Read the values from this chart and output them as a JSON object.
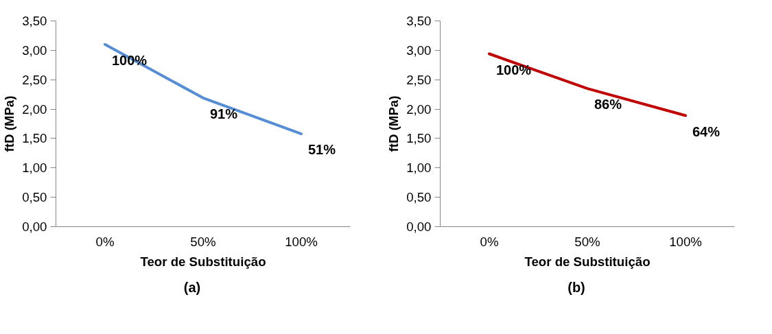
{
  "chart_data": [
    {
      "type": "line",
      "xlabel": "Teor de Substituição",
      "ylabel": "ftD (MPa)",
      "categories": [
        "0%",
        "50%",
        "100%"
      ],
      "series": [
        {
          "color": "#558ed5",
          "values": [
            3.1,
            2.19,
            1.58
          ]
        }
      ],
      "ylim": [
        0,
        3.5
      ],
      "yticks": [
        {
          "value": 0,
          "label": "0,00"
        },
        {
          "value": 0.5,
          "label": "0,50"
        },
        {
          "value": 1,
          "label": "1,00"
        },
        {
          "value": 1.5,
          "label": "1,50"
        },
        {
          "value": 2,
          "label": "2,00"
        },
        {
          "value": 2.5,
          "label": "2,50"
        },
        {
          "value": 3,
          "label": "3,00"
        },
        {
          "value": 3.5,
          "label": "3,50"
        }
      ],
      "grid": false,
      "marker": "none",
      "line_style": "solid",
      "annotations": [
        {
          "text": "100%",
          "x": "0%",
          "y": 3.1
        },
        {
          "text": "91%",
          "x": "50%",
          "y": 2.19
        },
        {
          "text": "51%",
          "x": "100%",
          "y": 1.58
        },
        "(a)"
      ]
    },
    {
      "type": "line",
      "xlabel": "Teor de Substituição",
      "ylabel": "ftD (MPa)",
      "categories": [
        "0%",
        "50%",
        "100%"
      ],
      "series": [
        {
          "color": "#c00000",
          "values": [
            2.94,
            2.35,
            1.89
          ]
        }
      ],
      "ylim": [
        0,
        3.5
      ],
      "yticks": [
        {
          "value": 0,
          "label": "0,00"
        },
        {
          "value": 0.5,
          "label": "0,50"
        },
        {
          "value": 1,
          "label": "1,00"
        },
        {
          "value": 1.5,
          "label": "1,50"
        },
        {
          "value": 2,
          "label": "2,00"
        },
        {
          "value": 2.5,
          "label": "2,50"
        },
        {
          "value": 3,
          "label": "3,00"
        },
        {
          "value": 3.5,
          "label": "3,50"
        }
      ],
      "grid": false,
      "marker": "none",
      "line_style": "solid",
      "annotations": [
        {
          "text": "100%",
          "x": "0%",
          "y": 2.94
        },
        {
          "text": "86%",
          "x": "50%",
          "y": 2.35
        },
        {
          "text": "64%",
          "x": "100%",
          "y": 1.89
        },
        "(b)"
      ]
    }
  ]
}
